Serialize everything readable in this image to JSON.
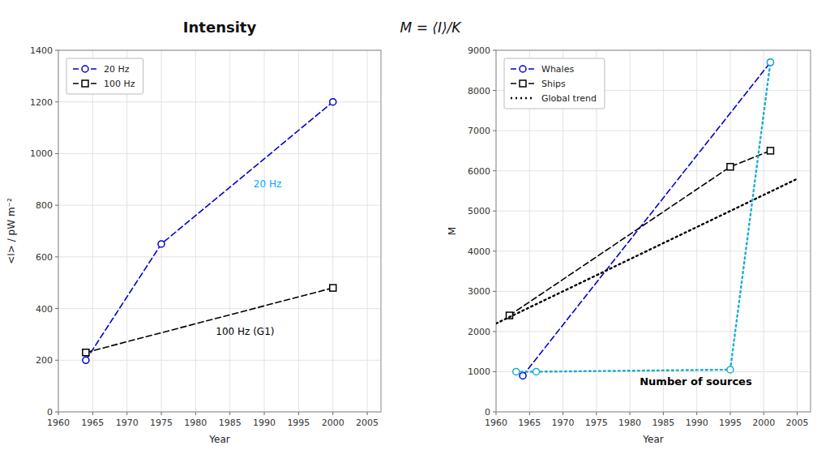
{
  "chart_data": [
    {
      "type": "line",
      "title": "Intensity",
      "xlabel": "Year",
      "ylabel": "<I> / pW m⁻²",
      "xlim": [
        1960,
        2007
      ],
      "ylim": [
        0,
        1400
      ],
      "xticks": [
        1960,
        1965,
        1970,
        1975,
        1980,
        1985,
        1990,
        1995,
        2000,
        2005
      ],
      "yticks": [
        0,
        200,
        400,
        600,
        800,
        1000,
        1200,
        1400
      ],
      "grid": true,
      "legend": "upper left",
      "series": [
        {
          "name": "20 Hz",
          "color": "#0000CC",
          "marker": "circle",
          "line_style": "dashed",
          "x": [
            1964,
            1975,
            2000
          ],
          "values": [
            200,
            650,
            1200
          ]
        },
        {
          "name": "100 Hz",
          "color": "#000000",
          "marker": "square",
          "line_style": "dashed",
          "x": [
            1964,
            2000
          ],
          "values": [
            230,
            480
          ]
        }
      ],
      "annotations": [
        {
          "text": "20 Hz",
          "color": "#00AAFF"
        },
        {
          "text": "100 Hz (G1)",
          "color": "#000000"
        }
      ]
    },
    {
      "type": "line",
      "xlabel": "Year",
      "ylabel": "M",
      "xlim": [
        1960,
        2007
      ],
      "ylim": [
        0,
        9000
      ],
      "xticks": [
        1960,
        1965,
        1970,
        1975,
        1980,
        1985,
        1990,
        1995,
        2000,
        2005
      ],
      "yticks": [
        0,
        1000,
        2000,
        3000,
        4000,
        5000,
        6000,
        7000,
        8000,
        9000
      ],
      "grid": true,
      "legend": "upper left",
      "series": [
        {
          "name": "Whales",
          "color": "#0000CC",
          "marker": "circle",
          "line_style": "dashed",
          "x": [
            1964,
            2001
          ],
          "values": [
            900,
            8700
          ]
        },
        {
          "name": "Ships",
          "color": "#000000",
          "marker": "square",
          "line_style": "dashed",
          "x": [
            1962,
            1995,
            2001
          ],
          "values": [
            2400,
            6100,
            6500
          ]
        },
        {
          "name": "Global trend",
          "color": "#000000",
          "marker": "none",
          "line_style": "dotted",
          "x": [
            1960,
            2005
          ],
          "values": [
            2200,
            5800
          ]
        },
        {
          "color": "#1AADCE",
          "marker": "circle",
          "line_style": "dotted",
          "x": [
            1963,
            1966,
            1995,
            2001
          ],
          "values": [
            1000,
            1000,
            1050,
            8700
          ]
        }
      ],
      "annotations": [
        {
          "text": "Number of sources",
          "color": "#000000"
        },
        {
          "text": "M = ⟨I⟩/K"
        }
      ]
    }
  ]
}
